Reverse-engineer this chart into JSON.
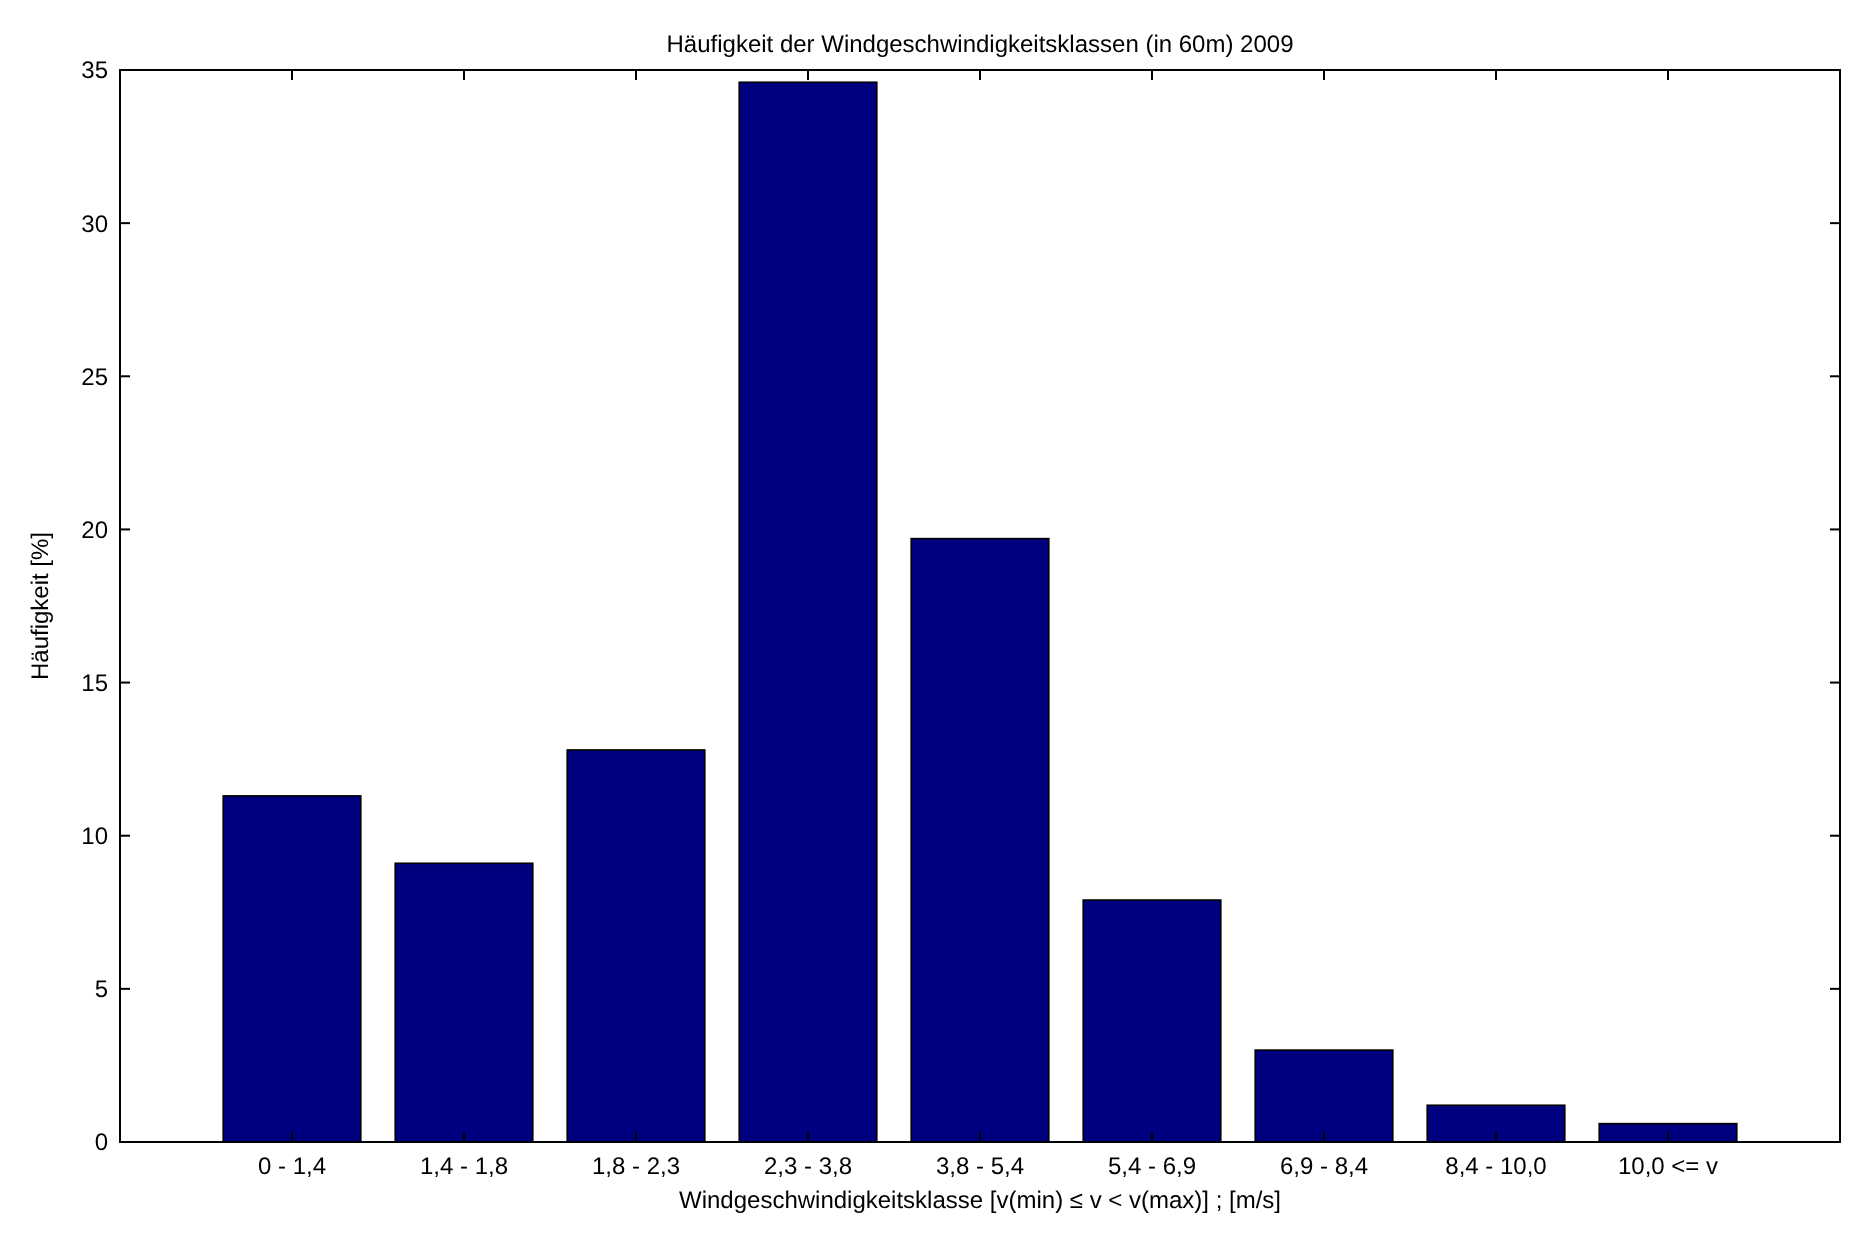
{
  "chart_data": {
    "type": "bar",
    "title": "Häufigkeit der Windgeschwindigkeitsklassen (in 60m) 2009",
    "xlabel": "Windgeschwindigkeitsklasse [v(min) ≤ v < v(max)] ; [m/s]",
    "ylabel": "Häufigkeit [%]",
    "categories": [
      "0 - 1,4",
      "1,4 - 1,8",
      "1,8 - 2,3",
      "2,3 - 3,8",
      "3,8 - 5,4",
      "5,4 - 6,9",
      "6,9 - 8,4",
      "8,4 - 10,0",
      "10,0 <= v"
    ],
    "values": [
      11.3,
      9.1,
      12.8,
      34.6,
      19.7,
      7.9,
      3.0,
      1.2,
      0.6
    ],
    "color": "#00007f",
    "ylim": [
      0,
      35
    ],
    "yticks": [
      0,
      5,
      10,
      15,
      20,
      25,
      30,
      35
    ],
    "grid": false
  }
}
